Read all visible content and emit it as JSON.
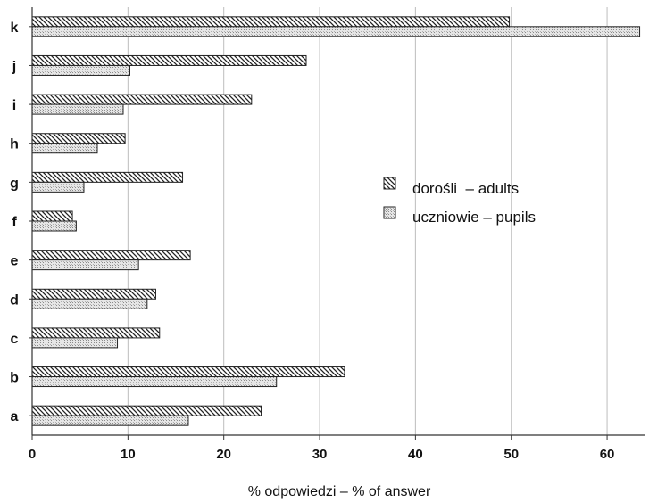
{
  "chart_data": {
    "type": "bar",
    "orientation": "horizontal",
    "categories": [
      "k",
      "j",
      "i",
      "h",
      "g",
      "f",
      "e",
      "d",
      "c",
      "b",
      "a"
    ],
    "series": [
      {
        "name": "dorośli  – adults",
        "values": [
          49.8,
          28.6,
          22.9,
          9.7,
          15.7,
          4.2,
          16.5,
          12.9,
          13.3,
          32.6,
          23.9
        ]
      },
      {
        "name": "uczniowie – pupils",
        "values": [
          63.4,
          10.2,
          9.5,
          6.8,
          5.4,
          4.6,
          11.1,
          12.0,
          8.9,
          25.5,
          16.3
        ]
      }
    ],
    "xlabel": "% odpowiedzi – % of answer",
    "ylabel": "",
    "xlim": [
      0,
      64
    ],
    "xticks": [
      0,
      10,
      20,
      30,
      40,
      50,
      60
    ],
    "grid": "vertical",
    "legend_position": "right-middle"
  }
}
